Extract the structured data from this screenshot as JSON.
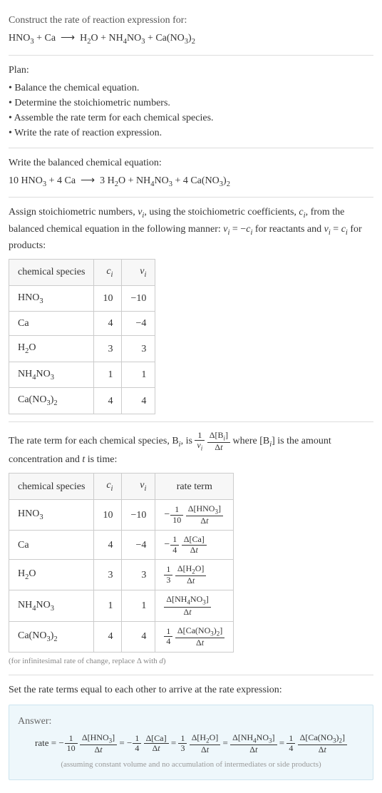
{
  "header": {
    "prompt": "Construct the rate of reaction expression for:",
    "unbalanced": "HNO<sub>3</sub> + Ca &nbsp;⟶&nbsp; H<sub>2</sub>O + NH<sub>4</sub>NO<sub>3</sub> + Ca(NO<sub>3</sub>)<sub>2</sub>"
  },
  "plan": {
    "title": "Plan:",
    "items": [
      "Balance the chemical equation.",
      "Determine the stoichiometric numbers.",
      "Assemble the rate term for each chemical species.",
      "Write the rate of reaction expression."
    ]
  },
  "balanced": {
    "prompt": "Write the balanced chemical equation:",
    "equation": "10 HNO<sub>3</sub> + 4 Ca &nbsp;⟶&nbsp; 3 H<sub>2</sub>O + NH<sub>4</sub>NO<sub>3</sub> + 4 Ca(NO<sub>3</sub>)<sub>2</sub>"
  },
  "assign": {
    "text": "Assign stoichiometric numbers, <span class='italic'>ν<sub>i</sub></span>, using the stoichiometric coefficients, <span class='italic'>c<sub>i</sub></span>, from the balanced chemical equation in the following manner: <span class='italic'>ν<sub>i</sub></span> = −<span class='italic'>c<sub>i</sub></span> for reactants and <span class='italic'>ν<sub>i</sub></span> = <span class='italic'>c<sub>i</sub></span> for products:"
  },
  "table1": {
    "headers": [
      "chemical species",
      "<span class='italic'>c<sub>i</sub></span>",
      "<span class='italic'>ν<sub>i</sub></span>"
    ],
    "rows": [
      [
        "HNO<sub>3</sub>",
        "10",
        "−10"
      ],
      [
        "Ca",
        "4",
        "−4"
      ],
      [
        "H<sub>2</sub>O",
        "3",
        "3"
      ],
      [
        "NH<sub>4</sub>NO<sub>3</sub>",
        "1",
        "1"
      ],
      [
        "Ca(NO<sub>3</sub>)<sub>2</sub>",
        "4",
        "4"
      ]
    ]
  },
  "rateterm": {
    "text_a": "The rate term for each chemical species, B<sub><span class='italic'>i</span></sub>, is ",
    "text_b": " where [B<sub><span class='italic'>i</span></sub>] is the amount concentration and <span class='italic'>t</span> is time:"
  },
  "table2": {
    "headers": [
      "chemical species",
      "<span class='italic'>c<sub>i</sub></span>",
      "<span class='italic'>ν<sub>i</sub></span>",
      "rate term"
    ],
    "rows": [
      {
        "sp": "HNO<sub>3</sub>",
        "c": "10",
        "v": "−10",
        "sign": "−",
        "fn": "1",
        "fd": "10",
        "dn": "Δ[HNO<sub>3</sub>]",
        "dd": "Δ<span class='italic'>t</span>"
      },
      {
        "sp": "Ca",
        "c": "4",
        "v": "−4",
        "sign": "−",
        "fn": "1",
        "fd": "4",
        "dn": "Δ[Ca]",
        "dd": "Δ<span class='italic'>t</span>"
      },
      {
        "sp": "H<sub>2</sub>O",
        "c": "3",
        "v": "3",
        "sign": "",
        "fn": "1",
        "fd": "3",
        "dn": "Δ[H<sub>2</sub>O]",
        "dd": "Δ<span class='italic'>t</span>"
      },
      {
        "sp": "NH<sub>4</sub>NO<sub>3</sub>",
        "c": "1",
        "v": "1",
        "sign": "",
        "fn": "",
        "fd": "",
        "dn": "Δ[NH<sub>4</sub>NO<sub>3</sub>]",
        "dd": "Δ<span class='italic'>t</span>"
      },
      {
        "sp": "Ca(NO<sub>3</sub>)<sub>2</sub>",
        "c": "4",
        "v": "4",
        "sign": "",
        "fn": "1",
        "fd": "4",
        "dn": "Δ[Ca(NO<sub>3</sub>)<sub>2</sub>]",
        "dd": "Δ<span class='italic'>t</span>"
      }
    ],
    "note": "(for infinitesimal rate of change, replace Δ with <span class='italic'>d</span>)"
  },
  "final": {
    "prompt": "Set the rate terms equal to each other to arrive at the rate expression:",
    "answer_label": "Answer:",
    "note": "(assuming constant volume and no accumulation of intermediates or side products)"
  },
  "colors": {
    "border": "#ddd",
    "answer_bg": "#eef7fb",
    "answer_border": "#cde4ef",
    "note_color": "#888"
  }
}
